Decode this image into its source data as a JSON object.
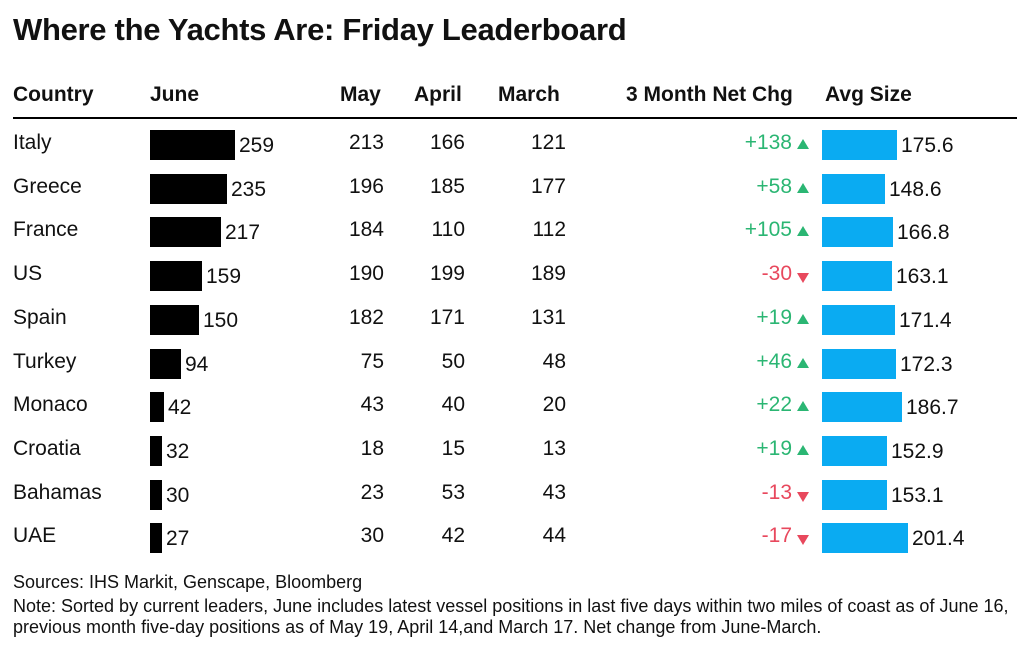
{
  "title": "Where the Yachts Are: Friday Leaderboard",
  "headers": {
    "country": "Country",
    "june": "June",
    "may": "May",
    "april": "April",
    "march": "March",
    "net_chg": "3 Month Net Chg",
    "avg_size": "Avg Size"
  },
  "colors": {
    "june_bar": "#000000",
    "avg_bar": "#0aabf2",
    "positive": "#2bb673",
    "negative": "#e8485d"
  },
  "chart_data": {
    "type": "table",
    "title": "Where the Yachts Are: Friday Leaderboard",
    "columns": [
      "Country",
      "June",
      "May",
      "April",
      "March",
      "3 Month Net Chg",
      "Avg Size"
    ],
    "rows": [
      {
        "country": "Italy",
        "june": 259,
        "may": 213,
        "april": 166,
        "march": 121,
        "net_chg": "+138",
        "direction": "up",
        "avg_size": "175.6"
      },
      {
        "country": "Greece",
        "june": 235,
        "may": 196,
        "april": 185,
        "march": 177,
        "net_chg": "+58",
        "direction": "up",
        "avg_size": "148.6"
      },
      {
        "country": "France",
        "june": 217,
        "may": 184,
        "april": 110,
        "march": 112,
        "net_chg": "+105",
        "direction": "up",
        "avg_size": "166.8"
      },
      {
        "country": "US",
        "june": 159,
        "may": 190,
        "april": 199,
        "march": 189,
        "net_chg": "-30",
        "direction": "down",
        "avg_size": "163.1"
      },
      {
        "country": "Spain",
        "june": 150,
        "may": 182,
        "april": 171,
        "march": 131,
        "net_chg": "+19",
        "direction": "up",
        "avg_size": "171.4"
      },
      {
        "country": "Turkey",
        "june": 94,
        "may": 75,
        "april": 50,
        "march": 48,
        "net_chg": "+46",
        "direction": "up",
        "avg_size": "172.3"
      },
      {
        "country": "Monaco",
        "june": 42,
        "may": 43,
        "april": 40,
        "march": 20,
        "net_chg": "+22",
        "direction": "up",
        "avg_size": "186.7"
      },
      {
        "country": "Croatia",
        "june": 32,
        "may": 18,
        "april": 15,
        "march": 13,
        "net_chg": "+19",
        "direction": "up",
        "avg_size": "152.9"
      },
      {
        "country": "Bahamas",
        "june": 30,
        "may": 23,
        "april": 53,
        "march": 43,
        "net_chg": "-13",
        "direction": "down",
        "avg_size": "153.1"
      },
      {
        "country": "UAE",
        "june": 27,
        "may": 30,
        "april": 42,
        "march": 44,
        "net_chg": "-17",
        "direction": "down",
        "avg_size": "201.4"
      }
    ]
  },
  "sources": "Sources: IHS Markit, Genscape, Bloomberg",
  "note": "Note: Sorted by current leaders, June includes latest vessel positions in last five days within two miles of coast as of June 16, previous month five-day positions as of May 19, April 14,and March 17. Net change from June-March."
}
